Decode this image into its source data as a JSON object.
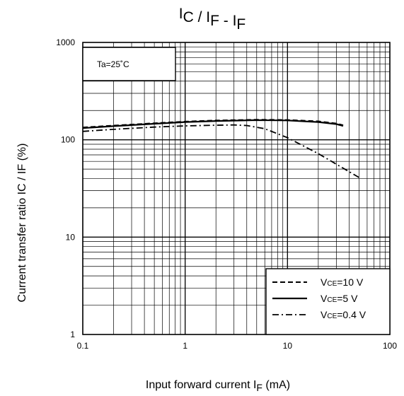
{
  "chart_data": {
    "type": "line",
    "title": {
      "parts": [
        {
          "text": "I",
          "sub": "C"
        },
        {
          "text": "/"
        },
        {
          "text": "I",
          "sub": "F"
        },
        {
          "text": "-"
        },
        {
          "text": "I",
          "sub": "F"
        }
      ]
    },
    "xlabel": {
      "text": "Input forward current",
      "symbol": "I",
      "sub": "F",
      "unit": "(mA)"
    },
    "ylabel": {
      "text": "Current transfer ratio",
      "symbol": "IC / IF",
      "unit": "(%)"
    },
    "xscale": "log",
    "yscale": "log",
    "xlim": [
      0.1,
      100
    ],
    "ylim": [
      1,
      1000
    ],
    "x_ticks": [
      {
        "value": 0.1,
        "label": "0.1"
      },
      {
        "value": 1,
        "label": "1"
      },
      {
        "value": 10,
        "label": "10"
      },
      {
        "value": 100,
        "label": "100"
      }
    ],
    "y_ticks": [
      {
        "value": 1,
        "label": "1"
      },
      {
        "value": 10,
        "label": "10"
      },
      {
        "value": 100,
        "label": "100"
      },
      {
        "value": 1000,
        "label": "1000"
      }
    ],
    "grid": true,
    "annotation": "Ta=25˚C",
    "legend_position": "bottom-right",
    "series": [
      {
        "name": {
          "pre": "V",
          "sub": "CE",
          "post": "=10  V"
        },
        "style": "dashed",
        "x": [
          0.1,
          0.2,
          0.5,
          1,
          2,
          5,
          10,
          20,
          30,
          35
        ],
        "y": [
          134,
          140,
          148,
          154,
          158,
          161,
          160,
          155,
          147,
          141
        ]
      },
      {
        "name": {
          "pre": "V",
          "sub": "CE",
          "post": "=5  V"
        },
        "style": "solid",
        "x": [
          0.1,
          0.2,
          0.5,
          1,
          2,
          5,
          10,
          20,
          30,
          35
        ],
        "y": [
          132,
          138,
          146,
          152,
          156,
          159,
          158,
          152,
          145,
          139
        ]
      },
      {
        "name": {
          "pre": "V",
          "sub": "CE",
          "post": "=0.4 V"
        },
        "style": "dashdot",
        "x": [
          0.1,
          0.2,
          0.5,
          1,
          2,
          3,
          4,
          6,
          10,
          20,
          50
        ],
        "y": [
          122,
          128,
          135,
          139,
          141,
          142,
          140,
          130,
          105,
          72,
          41
        ]
      }
    ]
  }
}
